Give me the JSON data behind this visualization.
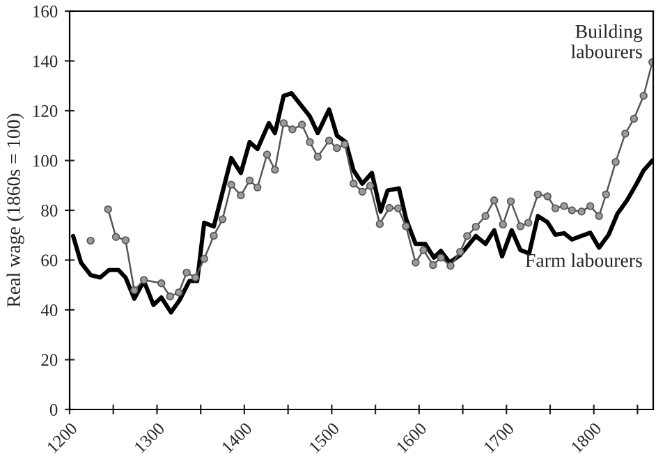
{
  "chart_data": {
    "type": "line",
    "ylabel": "Real wage (1860s = 100)",
    "xlim": [
      1200,
      1868
    ],
    "ylim": [
      0,
      160
    ],
    "xticks": [
      1200,
      {
        "value": 1250,
        "label": null
      },
      1300,
      {
        "value": 1350,
        "label": null
      },
      1400,
      {
        "value": 1450,
        "label": null
      },
      1500,
      {
        "value": 1550,
        "label": null
      },
      1600,
      {
        "value": 1650,
        "label": null
      },
      1700,
      {
        "value": 1750,
        "label": null
      },
      1800,
      {
        "value": 1850,
        "label": null
      }
    ],
    "yticks": [
      0,
      20,
      40,
      60,
      80,
      100,
      120,
      140,
      160
    ],
    "grid": false,
    "legend": false,
    "series": [
      {
        "name": "Farm labourers",
        "color": "#000000",
        "marker": "none",
        "line_style": "solid",
        "x": [
          1204,
          1213,
          1224,
          1235,
          1245,
          1256,
          1264,
          1274,
          1285,
          1296,
          1305,
          1316,
          1326,
          1337,
          1346,
          1354,
          1365,
          1385,
          1396,
          1406,
          1415,
          1428,
          1435,
          1445,
          1454,
          1475,
          1484,
          1497,
          1506,
          1516,
          1525,
          1535,
          1546,
          1556,
          1564,
          1577,
          1585,
          1596,
          1607,
          1617,
          1625,
          1635,
          1647,
          1665,
          1676,
          1686,
          1695,
          1706,
          1716,
          1726,
          1736,
          1747,
          1756,
          1766,
          1775,
          1796,
          1806,
          1817,
          1827,
          1838,
          1849,
          1857,
          1867
        ],
        "values": [
          69.7,
          59,
          54,
          53,
          56,
          56,
          53,
          44.5,
          51.6,
          42,
          45,
          39,
          44,
          51.6,
          51.6,
          75,
          73.5,
          101,
          95,
          107.4,
          104.6,
          115,
          111,
          126,
          127,
          117.7,
          111,
          120.5,
          110,
          107.4,
          96,
          90.7,
          95,
          79.5,
          88,
          88.8,
          76.7,
          66.5,
          66.5,
          61,
          63.7,
          59,
          62,
          69.7,
          66.5,
          72,
          61.5,
          72,
          64,
          62.7,
          77.7,
          75.2,
          70.2,
          70.8,
          68.3,
          71,
          65,
          70.2,
          78.6,
          84,
          90.7,
          96,
          100
        ]
      },
      {
        "name": "Building\nlabourers",
        "color": "#555555",
        "marker": "circle",
        "line_style": "solid",
        "x": [
          1224,
          1234,
          1244,
          1253,
          1264,
          1274,
          1285,
          1305,
          1315,
          1325,
          1334,
          1344,
          1354,
          1365,
          1375,
          1385,
          1396,
          1406,
          1415,
          1426,
          1435,
          1445,
          1455,
          1466,
          1475,
          1484,
          1497,
          1506,
          1515,
          1525,
          1535,
          1544,
          1555,
          1566,
          1576,
          1585,
          1596,
          1605,
          1616,
          1625,
          1636,
          1647,
          1655,
          1665,
          1676,
          1686,
          1696,
          1705,
          1716,
          1725,
          1736,
          1747,
          1756,
          1766,
          1775,
          1786,
          1796,
          1806,
          1814,
          1825,
          1836,
          1846,
          1857,
          1867
        ],
        "values": [
          67.8,
          null,
          80.4,
          69.3,
          68,
          47.9,
          52,
          50.7,
          45.4,
          47,
          55,
          53,
          60.5,
          69.8,
          76.4,
          90.3,
          86,
          92,
          89.2,
          102.4,
          96.3,
          115,
          112.5,
          114.4,
          107.4,
          101.5,
          108,
          105,
          106.5,
          90.7,
          87.5,
          89.8,
          74.5,
          81,
          80.8,
          73.6,
          59,
          64,
          58,
          61,
          57.7,
          63.3,
          69.7,
          73.4,
          77.7,
          84,
          74.3,
          83.6,
          73.6,
          75,
          86.4,
          85.6,
          80.8,
          81.7,
          80,
          79.5,
          81.7,
          77.7,
          86.4,
          99.4,
          110.8,
          116.8,
          126,
          139.5
        ]
      }
    ]
  }
}
